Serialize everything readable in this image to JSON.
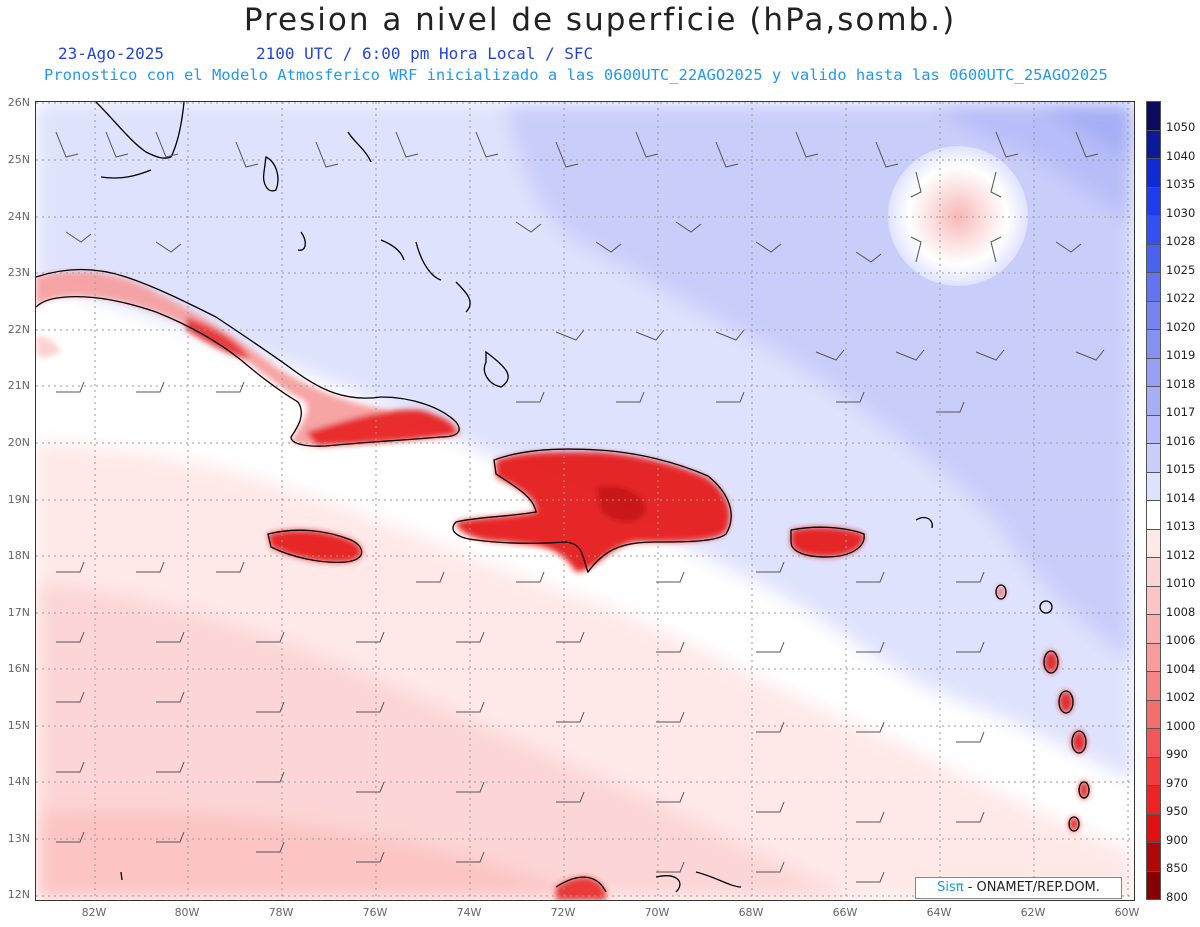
{
  "header": {
    "title": "Presion a nivel de superficie (hPa,somb.)",
    "date": "23-Ago-2025",
    "time_info": "2100 UTC / 6:00 pm Hora Local / SFC",
    "model_info": "Pronostico con el Modelo Atmosferico WRF inicializado a las 0600UTC_22AGO2025 y valido hasta las  0600UTC_25AGO2025"
  },
  "map": {
    "lat_labels": [
      "26N",
      "25N",
      "24N",
      "23N",
      "22N",
      "21N",
      "20N",
      "19N",
      "18N",
      "17N",
      "16N",
      "15N",
      "14N",
      "13N",
      "12N"
    ],
    "lon_labels": [
      "82W",
      "80W",
      "78W",
      "76W",
      "74W",
      "72W",
      "70W",
      "68W",
      "66W",
      "64W",
      "62W",
      "60W"
    ],
    "low_center": "1012 hPa local minimum near 24N 63.7W",
    "colors": {
      "high_pressure": "#c4c8f4",
      "neutral": "#ffffff",
      "low_pressure": "#fcd6d6",
      "terrain_red": "#e82020"
    }
  },
  "colorbar": {
    "levels": [
      "1050",
      "1040",
      "1035",
      "1030",
      "1028",
      "1025",
      "1022",
      "1020",
      "1019",
      "1018",
      "1017",
      "1016",
      "1015",
      "1014",
      "1013",
      "1012",
      "1010",
      "1008",
      "1006",
      "1004",
      "1002",
      "1000",
      "990",
      "970",
      "950",
      "900",
      "850",
      "800"
    ],
    "colors": [
      "#0b0b5e",
      "#0a1a9a",
      "#0f2ad6",
      "#1e3cf0",
      "#3350f2",
      "#4a62f0",
      "#6274f0",
      "#7683f0",
      "#8592f2",
      "#96a0f4",
      "#a6aef6",
      "#b7bdf8",
      "#c9cdfa",
      "#dfe2fc",
      "#ffffff",
      "#ffe8e8",
      "#fcd6d6",
      "#fcc4c4",
      "#fab0b0",
      "#f89c9c",
      "#f68686",
      "#f46e6e",
      "#f25656",
      "#f03c3c",
      "#ee2424",
      "#e01010",
      "#b00808",
      "#880000"
    ]
  },
  "credit": {
    "logo": "Sisπ",
    "text": " - ONAMET/REP.DOM."
  }
}
